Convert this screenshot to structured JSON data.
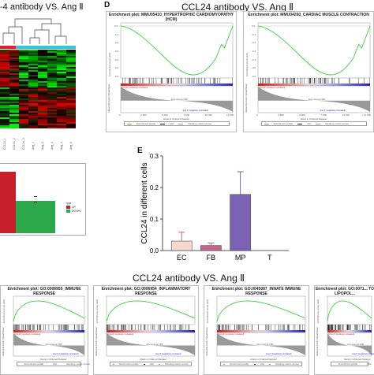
{
  "panel_a": {
    "title": "-4 antibody VS. Ang Ⅱ",
    "columns": [
      "CCL24_1",
      "CCL24_2",
      "CCL24_3",
      "Ang_1",
      "Ang_2",
      "Ang_3",
      "Ang_4",
      "Ang_5"
    ]
  },
  "panel_d": {
    "letter": "D",
    "title": "CCL24 antibody VS. Ang Ⅱ"
  },
  "panel_f": {
    "title": "CCL24 antibody VS. Ang Ⅱ"
  },
  "gsea_common": {
    "y1": "Enrichment score (ES)",
    "y2": "Ranked list metric (Signal2Noise)",
    "xlabel": "Rank in Ordered Dataset",
    "pos_label": "'CCL24' (positively correlated)",
    "neg_label": "'Ang II' (negatively correlated)",
    "zero_label": "Zero cross at 7496",
    "legend": [
      "Enrichment profile",
      "Hits",
      "Ranking metric scores"
    ]
  },
  "gsea_top": [
    {
      "title": "Enrichment plot: MMU05410_HYPERTROPHIC CARDIOMYOPATHY (HCM)",
      "yticks": [
        "0.0",
        "-0.1",
        "-0.2",
        "-0.3",
        "-0.4",
        "-0.5",
        "-0.6"
      ],
      "xticks": [
        "0",
        "2,500",
        "5,000",
        "7,500",
        "10,000",
        "12,500"
      ]
    },
    {
      "title": "Enrichment plot: MMU04260_CARDIAC MUSCLE CONTRACTION",
      "yticks": [
        "0.0",
        "-0.1",
        "-0.2",
        "-0.3",
        "-0.4",
        "-0.5",
        "-0.6"
      ],
      "xticks": [
        "0",
        "2,500",
        "5,000",
        "7,500",
        "10,000",
        "12,500"
      ]
    }
  ],
  "gsea_bottom": [
    {
      "title": "Enrichment plot: GO:0006955_IMMUNE RESPONSE"
    },
    {
      "title": "Enrichment plot: GO:0006954_INFLAMMATORY RESPONSE"
    },
    {
      "title": "Enrichment plot: GO:0045087_INNATE IMMUNE RESPONSE"
    },
    {
      "title": "Enrichment plot: GO:0071... TO LIPOPOL..."
    }
  ],
  "panel_b": {
    "legend_title": "type",
    "legend": [
      "UP",
      "DOWN"
    ],
    "colors": {
      "up": "#c8202a",
      "down": "#2aa84a"
    }
  },
  "chart_data": {
    "type": "bar",
    "letter": "E",
    "categories": [
      "EC",
      "FB",
      "MP",
      "T"
    ],
    "values": [
      0.03,
      0.016,
      0.178,
      0.0
    ],
    "errors": [
      0.028,
      0.008,
      0.072,
      0.0
    ],
    "colors": [
      "#f5d9d0",
      "#c26590",
      "#7b62b2",
      "#3a3aa0"
    ],
    "ylabel": "CCL24 in different cells",
    "yticks": [
      "0.0",
      "0.1",
      "0.2",
      "0.3"
    ],
    "ylim": [
      0,
      0.3
    ]
  }
}
